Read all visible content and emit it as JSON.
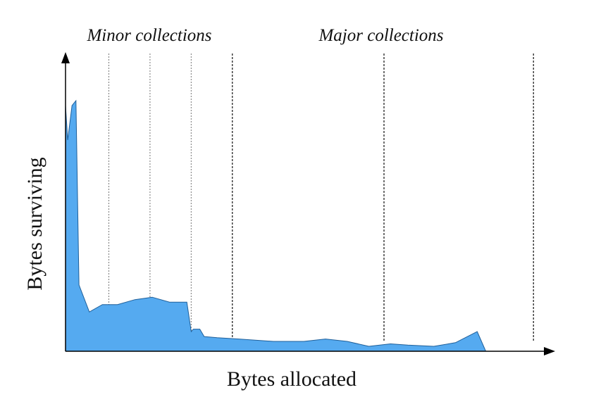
{
  "chart_data": {
    "type": "area",
    "title": "",
    "xlabel": "Bytes allocated",
    "ylabel": "Bytes surviving",
    "xlim": [
      0,
      100
    ],
    "ylim": [
      0,
      100
    ],
    "grid": false,
    "legend": "none",
    "fill_color": "#55aaf0",
    "series": [
      {
        "x": [
          0,
          0.5,
          1.5,
          2.4,
          3.1,
          5.5,
          8.5,
          12,
          16,
          20,
          24,
          28,
          29,
          29.5,
          31,
          32,
          35,
          40,
          48,
          55,
          60,
          65,
          70,
          75,
          79,
          85,
          90,
          95,
          97,
          99.5,
          100
        ],
        "y": [
          100,
          86,
          100,
          102,
          27,
          16,
          19,
          19,
          21,
          22,
          20,
          20,
          8,
          9,
          9,
          6,
          5.5,
          5,
          4,
          4,
          5,
          4,
          2,
          3,
          2.5,
          2,
          3.5,
          8,
          0,
          0,
          0
        ]
      }
    ],
    "collections": [
      {
        "x": 10,
        "kind": "minor"
      },
      {
        "x": 19.5,
        "kind": "minor"
      },
      {
        "x": 29,
        "kind": "minor"
      },
      {
        "x": 38.5,
        "kind": "major"
      },
      {
        "x": 73.5,
        "kind": "major"
      },
      {
        "x": 108,
        "kind": "major"
      }
    ],
    "annotations": [
      "Minor collections",
      "Major collections"
    ]
  }
}
